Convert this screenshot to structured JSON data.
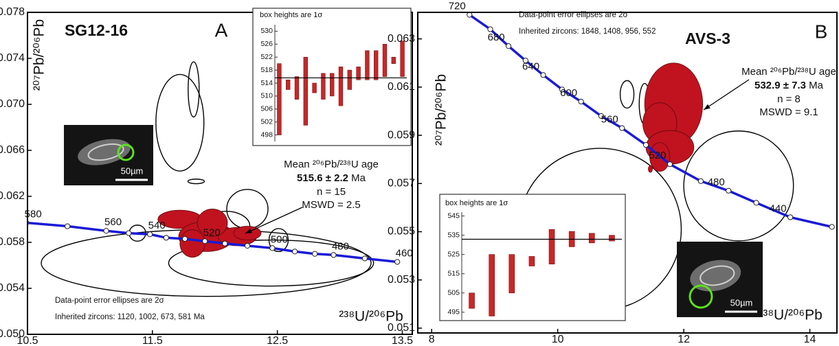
{
  "chart_data": [
    {
      "type": "concordia",
      "title": "SG12-16",
      "panel": "A",
      "x_label": "²³⁸U/²⁰⁶Pb",
      "y_label": "²⁰⁷Pb/²⁰⁶Pb",
      "xlim": [
        10.5,
        13.58
      ],
      "ylim": [
        0.05,
        0.078
      ],
      "xticks": [
        10.5,
        11.5,
        12.5,
        13.5
      ],
      "yticks": [
        {
          "value": 0.05,
          "label": "0.050"
        },
        0.054,
        0.058,
        0.062,
        0.066,
        {
          "value": 0.07,
          "label": "0.070"
        },
        0.074,
        0.078
      ],
      "concordia": {
        "x": [
          10.49,
          10.82,
          11.13,
          11.31,
          11.48,
          11.61,
          11.76,
          11.92,
          12.08,
          12.26,
          12.46,
          12.64,
          12.8,
          12.95,
          13.2,
          13.46
        ],
        "y": [
          0.0597,
          0.0594,
          0.059,
          0.0588,
          0.0587,
          0.0584,
          0.0583,
          0.0581,
          0.0579,
          0.0577,
          0.0575,
          0.0572,
          0.057,
          0.0569,
          0.0566,
          0.0563
        ],
        "labels": [
          580,
          null,
          560,
          null,
          540,
          null,
          null,
          520,
          null,
          null,
          500,
          null,
          null,
          480,
          null,
          460
        ]
      },
      "concordia_color": "#1a1ad6",
      "ellipses": [
        {
          "cx": 11.72,
          "cy": 0.0684,
          "sx": 0.192,
          "sy": 0.0042,
          "filled": false
        },
        {
          "cx": 11.83,
          "cy": 0.0713,
          "sx": 0.044,
          "sy": 0.0024,
          "filled": false
        },
        {
          "cx": 11.93,
          "cy": 0.0562,
          "sx": 1.32,
          "sy": 0.0029,
          "filled": false
        },
        {
          "cx": 12.45,
          "cy": 0.0562,
          "sx": 0.82,
          "sy": 0.002,
          "filled": false
        },
        {
          "cx": 11.85,
          "cy": 0.0633,
          "sx": 0.066,
          "sy": 0.0002,
          "filled": false
        },
        {
          "cx": 12.26,
          "cy": 0.0609,
          "sx": 0.165,
          "sy": 0.0017,
          "filled": false
        },
        {
          "cx": 12.51,
          "cy": 0.0582,
          "sx": 0.077,
          "sy": 0.001,
          "filled": false
        },
        {
          "cx": 12.09,
          "cy": 0.0594,
          "sx": 0.19,
          "sy": 0.0013,
          "filled": false
        },
        {
          "cx": 11.38,
          "cy": 0.0588,
          "sx": 0.066,
          "sy": 0.0007,
          "filled": false
        },
        {
          "cx": 11.72,
          "cy": 0.06,
          "sx": 0.176,
          "sy": 0.0008,
          "filled": true
        },
        {
          "cx": 11.93,
          "cy": 0.0585,
          "sx": 0.22,
          "sy": 0.0013,
          "filled": true
        },
        {
          "cx": 12.18,
          "cy": 0.0585,
          "sx": 0.154,
          "sy": 0.0008,
          "filled": true
        },
        {
          "cx": 11.98,
          "cy": 0.0597,
          "sx": 0.121,
          "sy": 0.0012,
          "filled": true
        },
        {
          "cx": 11.82,
          "cy": 0.0579,
          "sx": 0.1,
          "sy": 0.0012,
          "filled": true
        },
        {
          "cx": 12.26,
          "cy": 0.0588,
          "sx": 0.11,
          "sy": 0.0006,
          "filled": true
        }
      ],
      "ellipse_fill": "#c1121f",
      "mean_age": {
        "label": "Mean ²⁰⁶Pb/²³⁸U age",
        "value": "515.6 ± 2.2",
        "unit": "Ma",
        "n": "n = 15",
        "mswd": "MSWD = 2.5"
      },
      "notes": [
        "Data-point error ellipses are 2σ",
        "Inherited zircons: 1120, 1002, 673, 581 Ma"
      ],
      "scale_bar": "50µm"
    },
    {
      "type": "errorbar",
      "title": "box heights are 1σ",
      "values": [
        509,
        513.5,
        512.5,
        511.5,
        512.5,
        513,
        513.5,
        513,
        515,
        517,
        519.5,
        519.5,
        521,
        521,
        521.5
      ],
      "errors": [
        11,
        1.5,
        3.5,
        10.5,
        1.5,
        4,
        3.5,
        6,
        3,
        2,
        4.5,
        4.5,
        5,
        1,
        5.5
      ],
      "mean": 515.6,
      "ylim": [
        496,
        532
      ],
      "yticks": [
        498,
        502,
        506,
        510,
        514,
        518,
        522,
        526,
        530
      ],
      "color": "#c62828"
    },
    {
      "type": "concordia",
      "title": "AVS-3",
      "panel": "B",
      "x_label": "²³⁸U/²⁰⁶Pb",
      "y_label": "²⁰⁷Pb/²⁰⁶Pb",
      "xlim": [
        7.78,
        14.43
      ],
      "ylim": [
        0.0508,
        0.0641
      ],
      "xticks": [
        8,
        10,
        12,
        14
      ],
      "yticks": [
        0.051,
        0.053,
        0.055,
        0.057,
        0.059,
        0.061,
        0.063
      ],
      "concordia": {
        "x": [
          8.6,
          8.93,
          9.22,
          9.49,
          9.77,
          10.07,
          10.37,
          10.69,
          11.02,
          11.4,
          11.78,
          12.27,
          12.71,
          13.15,
          13.69,
          14.35
        ],
        "y": [
          0.064,
          0.0634,
          0.0627,
          0.0621,
          0.0615,
          0.0609,
          0.0604,
          0.0598,
          0.0593,
          0.0586,
          0.0578,
          0.0571,
          0.0567,
          0.0562,
          0.0556,
          0.0552
        ],
        "labels": [
          720,
          null,
          680,
          null,
          640,
          null,
          600,
          null,
          560,
          null,
          520,
          null,
          480,
          null,
          440,
          null
        ]
      },
      "concordia_color": "#1a1ad6",
      "ellipses": [
        {
          "cx": 10.67,
          "cy": 0.0551,
          "sx": 1.29,
          "sy": 0.00336,
          "filled": false
        },
        {
          "cx": 12.87,
          "cy": 0.0569,
          "sx": 0.87,
          "sy": 0.00228,
          "filled": false
        },
        {
          "cx": 11.1,
          "cy": 0.0607,
          "sx": 0.109,
          "sy": 0.00057,
          "filled": false
        },
        {
          "cx": 11.38,
          "cy": 0.0603,
          "sx": 0.087,
          "sy": 0.00085,
          "filled": false
        },
        {
          "cx": 11.84,
          "cy": 0.0603,
          "sx": 0.46,
          "sy": 0.0017,
          "filled": true
        },
        {
          "cx": 11.62,
          "cy": 0.0595,
          "sx": 0.27,
          "sy": 0.00085,
          "filled": true
        },
        {
          "cx": 11.78,
          "cy": 0.0585,
          "sx": 0.38,
          "sy": 0.0007,
          "filled": true
        },
        {
          "cx": 11.62,
          "cy": 0.0581,
          "sx": 0.16,
          "sy": 0.0006,
          "filled": true
        },
        {
          "cx": 11.47,
          "cy": 0.0576,
          "sx": 0.033,
          "sy": 0.00014,
          "filled": true
        }
      ],
      "ellipse_fill": "#c1121f",
      "mean_age": {
        "label": "Mean ²⁰⁶Pb/²³⁸U age",
        "value": "532.9 ± 7.3",
        "unit": "Ma",
        "n": "n = 8",
        "mswd": "MSWD = 9.1"
      },
      "notes": [
        "Data-point error ellipses are 2σ",
        "Inherited zircons: 1848, 1408, 956, 552"
      ],
      "scale_bar": "50µm"
    },
    {
      "type": "errorbar",
      "title": "box heights are 1σ",
      "values": [
        501,
        509,
        515,
        521.5,
        529,
        533,
        533.5,
        533.5
      ],
      "errors": [
        4,
        16,
        10,
        2.5,
        9,
        4,
        2.5,
        1.5
      ],
      "mean": 532.9,
      "ylim": [
        491,
        547
      ],
      "yticks": [
        495,
        505,
        515,
        525,
        535,
        545
      ],
      "color": "#c62828"
    }
  ]
}
